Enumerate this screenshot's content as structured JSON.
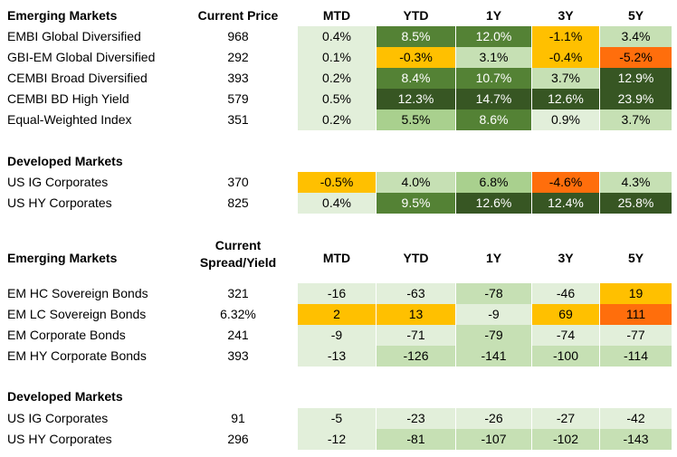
{
  "colors": {
    "pale": "#e2efda",
    "light": "#c6e0b4",
    "mid": "#a9d08e",
    "green": "#548235",
    "dark": "#375623",
    "amber": "#ffc000",
    "orange": "#ff6e0c"
  },
  "table1": {
    "title": "Emerging Markets",
    "price_header": "Current Price",
    "columns": [
      "MTD",
      "YTD",
      "1Y",
      "3Y",
      "5Y"
    ],
    "rows": [
      {
        "name": "EMBI Global Diversified",
        "price": "968",
        "values": [
          "0.4%",
          "8.5%",
          "12.0%",
          "-1.1%",
          "3.4%"
        ],
        "colors": [
          "pale",
          "green",
          "green",
          "amber",
          "light"
        ]
      },
      {
        "name": "GBI-EM Global Diversified",
        "price": "292",
        "values": [
          "0.1%",
          "-0.3%",
          "3.1%",
          "-0.4%",
          "-5.2%"
        ],
        "colors": [
          "pale",
          "amber",
          "light",
          "amber",
          "orange"
        ]
      },
      {
        "name": "CEMBI Broad Diversified",
        "price": "393",
        "values": [
          "0.2%",
          "8.4%",
          "10.7%",
          "3.7%",
          "12.9%"
        ],
        "colors": [
          "pale",
          "green",
          "green",
          "light",
          "dark"
        ]
      },
      {
        "name": "CEMBI BD High Yield",
        "price": "579",
        "values": [
          "0.5%",
          "12.3%",
          "14.7%",
          "12.6%",
          "23.9%"
        ],
        "colors": [
          "pale",
          "dark",
          "dark",
          "dark",
          "dark"
        ]
      },
      {
        "name": "Equal-Weighted Index",
        "price": "351",
        "values": [
          "0.2%",
          "5.5%",
          "8.6%",
          "0.9%",
          "3.7%"
        ],
        "colors": [
          "pale",
          "mid",
          "green",
          "pale",
          "light"
        ]
      }
    ],
    "sub_title": "Developed Markets",
    "sub_rows": [
      {
        "name": "US IG Corporates",
        "price": "370",
        "values": [
          "-0.5%",
          "4.0%",
          "6.8%",
          "-4.6%",
          "4.3%"
        ],
        "colors": [
          "amber",
          "light",
          "mid",
          "orange",
          "light"
        ]
      },
      {
        "name": "US HY Corporates",
        "price": "825",
        "values": [
          "0.4%",
          "9.5%",
          "12.6%",
          "12.4%",
          "25.8%"
        ],
        "colors": [
          "pale",
          "green",
          "dark",
          "dark",
          "dark"
        ]
      }
    ]
  },
  "table2": {
    "title": "Emerging Markets",
    "spread_header_line1": "Current",
    "spread_header_line2": "Spread/Yield",
    "columns": [
      "MTD",
      "YTD",
      "1Y",
      "3Y",
      "5Y"
    ],
    "rows": [
      {
        "name": "EM HC Sovereign Bonds",
        "price": "321",
        "values": [
          "-16",
          "-63",
          "-78",
          "-46",
          "19"
        ],
        "colors": [
          "pale",
          "pale",
          "light",
          "pale",
          "amber"
        ]
      },
      {
        "name": "EM LC Sovereign Bonds",
        "price": "6.32%",
        "values": [
          "2",
          "13",
          "-9",
          "69",
          "111"
        ],
        "colors": [
          "amber",
          "amber",
          "pale",
          "amber",
          "orange"
        ]
      },
      {
        "name": "EM Corporate Bonds",
        "price": "241",
        "values": [
          "-9",
          "-71",
          "-79",
          "-74",
          "-77"
        ],
        "colors": [
          "pale",
          "pale",
          "light",
          "pale",
          "pale"
        ]
      },
      {
        "name": "EM HY Corporate Bonds",
        "price": "393",
        "values": [
          "-13",
          "-126",
          "-141",
          "-100",
          "-114"
        ],
        "colors": [
          "pale",
          "light",
          "light",
          "light",
          "light"
        ]
      }
    ],
    "sub_title": "Developed Markets",
    "sub_rows": [
      {
        "name": "US IG Corporates",
        "price": "91",
        "values": [
          "-5",
          "-23",
          "-26",
          "-27",
          "-42"
        ],
        "colors": [
          "pale",
          "pale",
          "pale",
          "pale",
          "pale"
        ]
      },
      {
        "name": "US HY Corporates",
        "price": "296",
        "values": [
          "-12",
          "-81",
          "-107",
          "-102",
          "-143"
        ],
        "colors": [
          "pale",
          "light",
          "light",
          "light",
          "light"
        ]
      }
    ]
  }
}
